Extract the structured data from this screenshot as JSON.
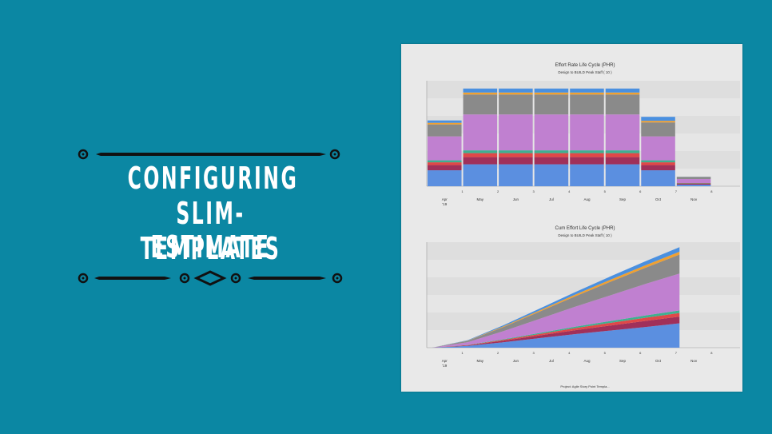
{
  "headline": {
    "line1": "CONFIGURING",
    "line2": "SLIM-ESTIMATE",
    "line3": "TEMPLATES"
  },
  "colors": {
    "background": "#0b87a3",
    "title": "#ffffff",
    "ornament": "#111111"
  },
  "charts": {
    "footer": "Project: Agile Story Point Templa..."
  },
  "chart_data": [
    {
      "type": "bar",
      "title": "Effort Rate Life Cycle (PHR)",
      "subtitle": "Design to BUILD Peak Staff ( 10 )",
      "month_labels": [
        "Apr '19",
        "May",
        "Jun",
        "Jul",
        "Aug",
        "Sep",
        "Oct",
        "Nov"
      ],
      "period_labels": [
        "1",
        "2",
        "3",
        "4",
        "5",
        "6",
        "7",
        "8"
      ],
      "stacking": "stacked",
      "grid": true,
      "series": [
        {
          "color": "#5b8fe0",
          "values": [
            4,
            5.5,
            5.5,
            5.5,
            5.5,
            5.5,
            4,
            0.4
          ]
        },
        {
          "color": "#a0305a",
          "values": [
            1.3,
            1.8,
            1.8,
            1.8,
            1.8,
            1.8,
            1.3,
            0.2
          ]
        },
        {
          "color": "#e04848",
          "values": [
            0.7,
            1,
            1,
            1,
            1,
            1,
            0.7,
            0.1
          ]
        },
        {
          "color": "#3fb090",
          "values": [
            0.5,
            0.7,
            0.7,
            0.7,
            0.7,
            0.7,
            0.5,
            0.1
          ]
        },
        {
          "color": "#c080d0",
          "values": [
            6,
            9,
            9,
            9,
            9,
            9,
            6,
            1
          ]
        },
        {
          "color": "#8a8a8a",
          "values": [
            3,
            5,
            5,
            5,
            5,
            5,
            3.5,
            0.5
          ]
        },
        {
          "color": "#f0a030",
          "values": [
            0.4,
            0.5,
            0.5,
            0.5,
            0.5,
            0.5,
            0.4,
            0.05
          ]
        },
        {
          "color": "#4a90e0",
          "values": [
            0.6,
            1,
            1,
            1,
            1,
            1,
            1,
            0.05
          ]
        }
      ]
    },
    {
      "type": "area",
      "title": "Cum Effort Life Cycle (PHR)",
      "subtitle": "Design to BUILD Peak Staff ( 10 )",
      "month_labels": [
        "Apr '19",
        "May",
        "Jun",
        "Jul",
        "Aug",
        "Sep",
        "Oct",
        "Nov"
      ],
      "period_labels": [
        "1",
        "2",
        "3",
        "4",
        "5",
        "6",
        "7",
        "8"
      ],
      "stacking": "stacked",
      "grid": true,
      "x": [
        0,
        1,
        2,
        3,
        4,
        5,
        6,
        6.95
      ],
      "series": [
        {
          "color": "#5b8fe0",
          "values": [
            0,
            2,
            6,
            10.5,
            15,
            19,
            23,
            27
          ]
        },
        {
          "color": "#a0305a",
          "values": [
            0,
            0.6,
            1.8,
            3,
            4.3,
            5.5,
            6.7,
            7.5
          ]
        },
        {
          "color": "#e04848",
          "values": [
            0,
            0.3,
            0.9,
            1.6,
            2.3,
            3,
            3.6,
            4
          ]
        },
        {
          "color": "#3fb090",
          "values": [
            0,
            0.2,
            0.6,
            1.1,
            1.6,
            2,
            2.5,
            2.8
          ]
        },
        {
          "color": "#c080d0",
          "values": [
            0,
            3,
            9,
            15.5,
            22,
            28.5,
            35,
            41
          ]
        },
        {
          "color": "#8a8a8a",
          "values": [
            0,
            1.5,
            4.5,
            8,
            11.5,
            15,
            18,
            21
          ]
        },
        {
          "color": "#f0a030",
          "values": [
            0,
            0.3,
            0.8,
            1.3,
            1.8,
            2.3,
            2.8,
            3.2
          ]
        },
        {
          "color": "#4a90e0",
          "values": [
            0,
            0.4,
            1.2,
            2,
            2.8,
            3.6,
            4.4,
            5
          ]
        }
      ]
    }
  ]
}
